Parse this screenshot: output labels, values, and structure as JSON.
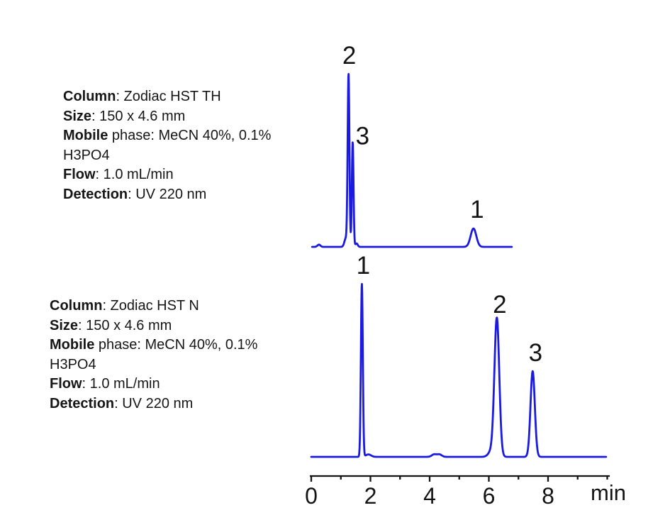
{
  "page": {
    "background": "#ffffff"
  },
  "info_blocks": [
    {
      "id": "top",
      "lines": [
        {
          "bold": "Column",
          "rest": ": Zodiac HST TH"
        },
        {
          "bold": "Size",
          "rest": ": 150 x 4.6 mm"
        },
        {
          "bold": "Mobile",
          "rest": " phase: MeCN 40%, 0.1%"
        },
        {
          "bold": "",
          "rest": "H3PO4"
        },
        {
          "bold": "Flow",
          "rest": ": 1.0 mL/min"
        },
        {
          "bold": "Detection",
          "rest": ": UV 220 nm"
        }
      ]
    },
    {
      "id": "bottom",
      "lines": [
        {
          "bold": "Column",
          "rest": ": Zodiac HST N"
        },
        {
          "bold": "Size",
          "rest": ": 150 x 4.6 mm"
        },
        {
          "bold": "Mobile",
          "rest": " phase: MeCN 40%, 0.1%"
        },
        {
          "bold": "",
          "rest": "H3PO4"
        },
        {
          "bold": "Flow",
          "rest": ": 1.0 mL/min"
        },
        {
          "bold": "Detection",
          "rest": ": UV 220 nm"
        }
      ]
    }
  ],
  "chart_data": {
    "type": "line",
    "subtype": "chromatogram-comparison",
    "trace_color": "#1a1ae0",
    "axis_color": "#141414",
    "x_axis": {
      "unit_label": "min",
      "range_min": [
        0,
        10
      ],
      "tick_step_min": 1,
      "labeled_ticks": [
        0,
        2,
        4,
        6,
        8
      ],
      "tick_labels": [
        "0",
        "2",
        "4",
        "6",
        "8"
      ],
      "grid": false
    },
    "panels": [
      {
        "id": "top",
        "column": "Zodiac HST TH",
        "time_range_min": [
          0.03,
          6.78
        ],
        "peaks": [
          {
            "label": "2",
            "retention_min": 1.26,
            "rel_height": 1.0,
            "sigma_min": 0.03,
            "label_offset": [
              1,
              -28
            ]
          },
          {
            "label": "3",
            "retention_min": 1.4,
            "rel_height": 0.61,
            "sigma_min": 0.028,
            "label_offset": [
              14,
              -9
            ]
          },
          {
            "label": "1",
            "retention_min": 5.48,
            "rel_height": 0.107,
            "sigma_min": 0.095,
            "label_offset": [
              5,
              -27
            ]
          }
        ],
        "minor_features": [
          {
            "retention_min": 0.26,
            "rel_height": 0.013,
            "sigma_min": 0.05
          },
          {
            "retention_min": 1.17,
            "rel_height": 0.05,
            "sigma_min": 0.05
          },
          {
            "retention_min": 1.53,
            "rel_height": 0.02,
            "sigma_min": 0.04
          }
        ]
      },
      {
        "id": "bottom",
        "column": "Zodiac HST N",
        "time_range_min": [
          0.0,
          9.96
        ],
        "peaks": [
          {
            "label": "1",
            "retention_min": 1.71,
            "rel_height": 1.0,
            "sigma_min": 0.032,
            "label_offset": [
              2,
              -26
            ]
          },
          {
            "label": "2",
            "retention_min": 6.27,
            "rel_height": 0.8,
            "sigma_min": 0.082,
            "label_offset": [
              4,
              -20
            ]
          },
          {
            "label": "3",
            "retention_min": 7.48,
            "rel_height": 0.495,
            "sigma_min": 0.073,
            "label_offset": [
              4,
              -26
            ]
          }
        ],
        "minor_features": [
          {
            "retention_min": 1.93,
            "rel_height": 0.014,
            "sigma_min": 0.09
          },
          {
            "retention_min": 4.15,
            "rel_height": 0.014,
            "sigma_min": 0.08
          },
          {
            "retention_min": 4.33,
            "rel_height": 0.014,
            "sigma_min": 0.08
          },
          {
            "retention_min": 6.08,
            "rel_height": 0.03,
            "sigma_min": 0.1
          }
        ]
      }
    ]
  }
}
